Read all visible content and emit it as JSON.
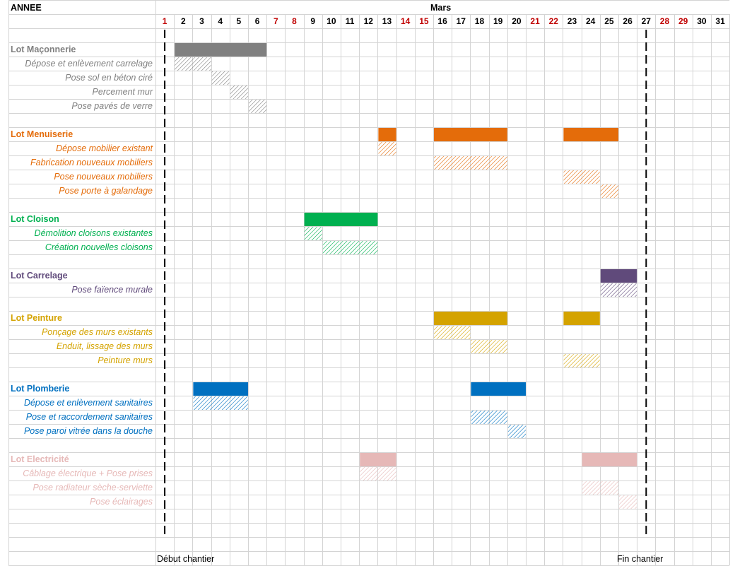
{
  "sheet": {
    "year_label": "ANNEE",
    "month_label": "Mars",
    "days": [
      "1",
      "2",
      "3",
      "4",
      "5",
      "6",
      "7",
      "8",
      "9",
      "10",
      "11",
      "12",
      "13",
      "14",
      "15",
      "16",
      "17",
      "18",
      "19",
      "20",
      "21",
      "22",
      "23",
      "24",
      "25",
      "26",
      "27",
      "28",
      "29",
      "30",
      "31"
    ],
    "weekend_days": [
      "1",
      "7",
      "8",
      "14",
      "15",
      "21",
      "22",
      "28",
      "29"
    ],
    "weekend_color": "#c00000",
    "start_label": "Début chantier",
    "end_label": "Fin chantier",
    "start_day": 1,
    "end_day": 27
  },
  "lots": [
    {
      "name": "Lot Maçonnerie",
      "color": "#808080",
      "bar_days": [
        [
          2,
          6
        ]
      ],
      "tasks": [
        {
          "name": "Dépose et enlèvement carrelage",
          "days": [
            2,
            3
          ]
        },
        {
          "name": "Pose sol en béton ciré",
          "days": [
            4,
            4
          ]
        },
        {
          "name": "Percement mur",
          "days": [
            5,
            5
          ]
        },
        {
          "name": "Pose pavés de verre",
          "days": [
            6,
            6
          ]
        }
      ]
    },
    {
      "name": "Lot Menuiserie",
      "color": "#e46c0a",
      "bar_days": [
        [
          13,
          13
        ],
        [
          16,
          19
        ],
        [
          23,
          25
        ]
      ],
      "tasks": [
        {
          "name": "Dépose mobilier existant",
          "days": [
            13,
            13
          ]
        },
        {
          "name": "Fabrication nouveaux mobiliers",
          "days": [
            16,
            19
          ]
        },
        {
          "name": "Pose nouveaux mobiliers",
          "days": [
            23,
            24
          ]
        },
        {
          "name": "Pose porte à galandage",
          "days": [
            25,
            25
          ]
        }
      ]
    },
    {
      "name": "Lot Cloison",
      "color": "#00b050",
      "bar_days": [
        [
          9,
          12
        ]
      ],
      "tasks": [
        {
          "name": "Démolition cloisons existantes",
          "days": [
            9,
            9
          ]
        },
        {
          "name": "Création nouvelles cloisons",
          "days": [
            10,
            12
          ]
        }
      ]
    },
    {
      "name": "Lot Carrelage",
      "color": "#604a7b",
      "bar_days": [
        [
          25,
          26
        ]
      ],
      "tasks": [
        {
          "name": "Pose faïence murale",
          "days": [
            25,
            26
          ]
        }
      ]
    },
    {
      "name": "Lot Peinture",
      "color": "#d4a300",
      "bar_days": [
        [
          16,
          19
        ],
        [
          23,
          24
        ]
      ],
      "tasks": [
        {
          "name": "Ponçage des murs existants",
          "days": [
            16,
            17
          ]
        },
        {
          "name": "Enduit, lissage des murs",
          "days": [
            18,
            19
          ]
        },
        {
          "name": "Peinture murs",
          "days": [
            23,
            24
          ]
        }
      ]
    },
    {
      "name": "Lot Plomberie",
      "color": "#0070c0",
      "bar_days": [
        [
          3,
          5
        ],
        [
          18,
          20
        ]
      ],
      "tasks": [
        {
          "name": "Dépose et enlèvement sanitaires",
          "days": [
            3,
            5
          ]
        },
        {
          "name": "Pose et raccordement sanitaires",
          "days": [
            18,
            19
          ]
        },
        {
          "name": "Pose paroi vitrée dans la douche",
          "days": [
            20,
            20
          ]
        }
      ]
    },
    {
      "name": "Lot Electricité",
      "color": "#e6b8b7",
      "bar_days": [
        [
          12,
          13
        ],
        [
          24,
          26
        ]
      ],
      "tasks": [
        {
          "name": "Câblage électrique + Pose prises",
          "days": [
            12,
            13
          ]
        },
        {
          "name": "Pose radiateur sèche-serviette",
          "days": [
            24,
            25
          ]
        },
        {
          "name": "Pose éclairages",
          "days": [
            26,
            26
          ]
        }
      ]
    }
  ]
}
